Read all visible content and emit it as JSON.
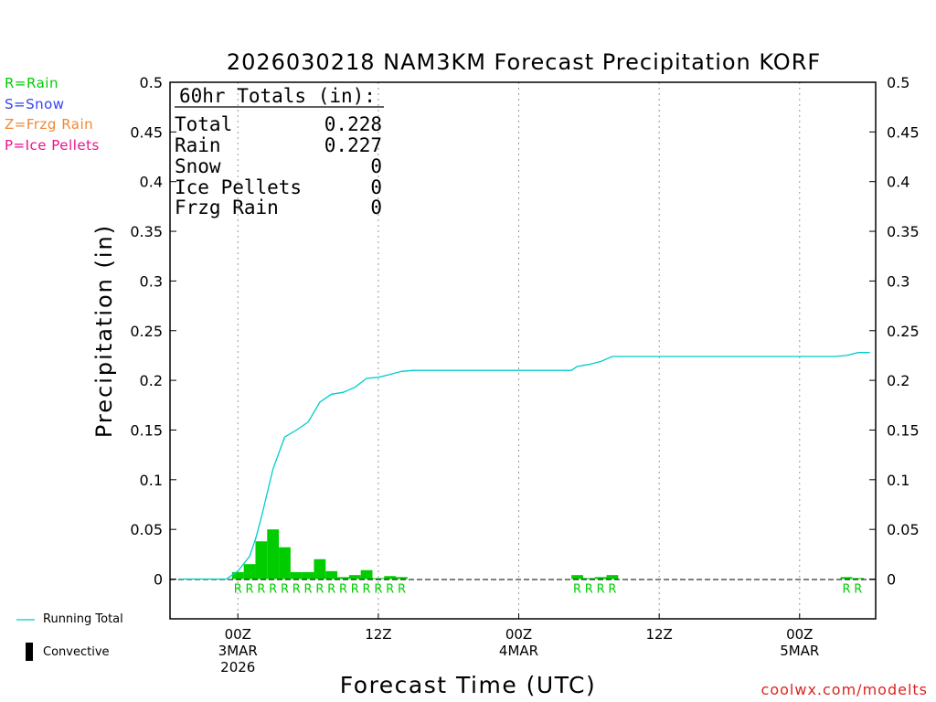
{
  "chart_data": {
    "type": "bar",
    "title": "2026030218 NAM3KM Forecast Precipitation KORF",
    "xlabel": "Forecast Time (UTC)",
    "ylabel": "Precipitation (in)",
    "ylim": [
      -0.04,
      0.5
    ],
    "yticks": [
      0,
      0.05,
      0.1,
      0.15,
      0.2,
      0.25,
      0.3,
      0.35,
      0.4,
      0.45,
      0.5
    ],
    "ytick_labels": [
      "0",
      "0.05",
      "0.1",
      "0.15",
      "0.2",
      "0.25",
      "0.3",
      "0.35",
      "0.4",
      "0.45",
      "0.5"
    ],
    "x_range_hours": [
      -5.8,
      54.5
    ],
    "x_ticks": [
      {
        "hour": 0,
        "lines": [
          "00Z",
          "3MAR",
          "2026"
        ]
      },
      {
        "hour": 12,
        "lines": [
          "12Z"
        ]
      },
      {
        "hour": 24,
        "lines": [
          "00Z",
          "4MAR"
        ]
      },
      {
        "hour": 36,
        "lines": [
          "12Z"
        ]
      },
      {
        "hour": 48,
        "lines": [
          "00Z",
          "5MAR"
        ]
      }
    ],
    "hourly_precip": [
      {
        "hour": 0,
        "value": 0.007
      },
      {
        "hour": 1,
        "value": 0.015
      },
      {
        "hour": 2,
        "value": 0.038
      },
      {
        "hour": 3,
        "value": 0.05
      },
      {
        "hour": 4,
        "value": 0.032
      },
      {
        "hour": 5,
        "value": 0.007
      },
      {
        "hour": 6,
        "value": 0.007
      },
      {
        "hour": 7,
        "value": 0.02
      },
      {
        "hour": 8,
        "value": 0.008
      },
      {
        "hour": 9,
        "value": 0.002
      },
      {
        "hour": 10,
        "value": 0.004
      },
      {
        "hour": 11,
        "value": 0.009
      },
      {
        "hour": 12,
        "value": 0.001
      },
      {
        "hour": 13,
        "value": 0.003
      },
      {
        "hour": 14,
        "value": 0.002
      },
      {
        "hour": 29,
        "value": 0.004
      },
      {
        "hour": 30,
        "value": 0.001
      },
      {
        "hour": 31,
        "value": 0.002
      },
      {
        "hour": 32,
        "value": 0.004
      },
      {
        "hour": 52,
        "value": 0.002
      },
      {
        "hour": 53,
        "value": 0.001
      }
    ],
    "precip_type_markers": [
      {
        "hour": 0,
        "type": "R"
      },
      {
        "hour": 1,
        "type": "R"
      },
      {
        "hour": 2,
        "type": "R"
      },
      {
        "hour": 3,
        "type": "R"
      },
      {
        "hour": 4,
        "type": "R"
      },
      {
        "hour": 5,
        "type": "R"
      },
      {
        "hour": 6,
        "type": "R"
      },
      {
        "hour": 7,
        "type": "R"
      },
      {
        "hour": 8,
        "type": "R"
      },
      {
        "hour": 9,
        "type": "R"
      },
      {
        "hour": 10,
        "type": "R"
      },
      {
        "hour": 11,
        "type": "R"
      },
      {
        "hour": 12,
        "type": "R"
      },
      {
        "hour": 13,
        "type": "R"
      },
      {
        "hour": 14,
        "type": "R"
      },
      {
        "hour": 29,
        "type": "R"
      },
      {
        "hour": 30,
        "type": "R"
      },
      {
        "hour": 31,
        "type": "R"
      },
      {
        "hour": 32,
        "type": "R"
      },
      {
        "hour": 52,
        "type": "R"
      },
      {
        "hour": 53,
        "type": "R"
      }
    ],
    "running_total": {
      "name": "Running Total",
      "x": [
        -5,
        -1,
        0,
        1,
        1.5,
        2,
        3,
        4,
        5,
        6,
        7,
        8,
        9,
        10,
        11,
        12,
        13,
        14,
        15,
        16,
        20,
        24,
        26,
        28,
        28.5,
        29,
        30,
        31,
        32,
        36,
        40,
        44,
        48,
        51,
        52,
        53,
        54
      ],
      "y": [
        0,
        0,
        0.008,
        0.023,
        0.04,
        0.062,
        0.111,
        0.143,
        0.15,
        0.158,
        0.178,
        0.186,
        0.188,
        0.193,
        0.202,
        0.203,
        0.206,
        0.209,
        0.21,
        0.21,
        0.21,
        0.21,
        0.21,
        0.21,
        0.21,
        0.214,
        0.216,
        0.219,
        0.224,
        0.224,
        0.224,
        0.224,
        0.224,
        0.224,
        0.225,
        0.228,
        0.228
      ]
    },
    "totals_box": {
      "heading": "60hr Totals (in):",
      "rows": [
        {
          "label": "Total",
          "value": "0.228"
        },
        {
          "label": "Rain",
          "value": "0.227"
        },
        {
          "label": "Snow",
          "value": "0"
        },
        {
          "label": "Ice Pellets",
          "value": "0"
        },
        {
          "label": "Frzg Rain",
          "value": "0"
        }
      ]
    },
    "colors": {
      "rain": "#00cc00",
      "snow": "#3344ee",
      "frzg_rain": "#ee8833",
      "ice_pellets": "#ee1188",
      "running_total": "#00cccc",
      "convective": "#000000"
    }
  },
  "ptype_legend": [
    "R=Rain",
    "S=Snow",
    "Z=Frzg Rain",
    "P=Ice Pellets"
  ],
  "series_legend": {
    "running_total": "Running Total",
    "convective": "Convective"
  },
  "credit": "coolwx.com/modelts"
}
